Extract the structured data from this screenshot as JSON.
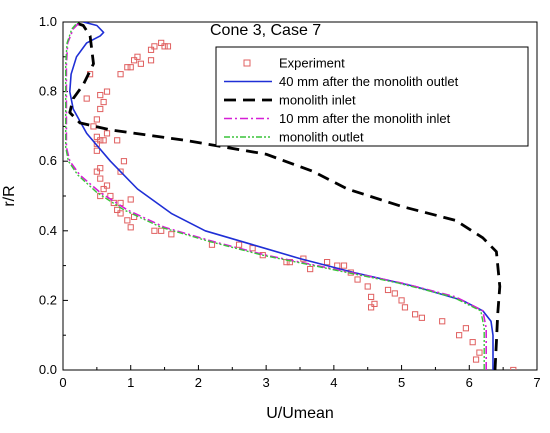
{
  "chart_data": {
    "type": "line",
    "title": "Cone 3, Case 7",
    "xlabel": "U/Umean",
    "ylabel": "r/R",
    "xlim": [
      0,
      7
    ],
    "ylim": [
      0,
      1.0
    ],
    "x_ticks": [
      "0",
      "1",
      "2",
      "3",
      "4",
      "5",
      "6",
      "7"
    ],
    "y_ticks": [
      "0.0",
      "0.2",
      "0.4",
      "0.6",
      "0.8",
      "1.0"
    ],
    "grid": false,
    "legend_position": "top-right",
    "series": [
      {
        "name": "Experiment",
        "kind": "scatter",
        "color": "#e06060",
        "marker": "open-square",
        "points": [
          [
            6.65,
            0.0
          ],
          [
            6.1,
            0.03
          ],
          [
            6.15,
            0.05
          ],
          [
            6.05,
            0.08
          ],
          [
            5.95,
            0.12
          ],
          [
            5.85,
            0.1
          ],
          [
            5.6,
            0.14
          ],
          [
            5.3,
            0.15
          ],
          [
            5.2,
            0.16
          ],
          [
            5.05,
            0.18
          ],
          [
            5.0,
            0.2
          ],
          [
            4.9,
            0.22
          ],
          [
            4.8,
            0.23
          ],
          [
            4.6,
            0.19
          ],
          [
            4.55,
            0.21
          ],
          [
            4.55,
            0.18
          ],
          [
            4.5,
            0.24
          ],
          [
            4.35,
            0.26
          ],
          [
            4.25,
            0.28
          ],
          [
            4.15,
            0.3
          ],
          [
            4.05,
            0.3
          ],
          [
            3.9,
            0.31
          ],
          [
            3.65,
            0.29
          ],
          [
            3.55,
            0.32
          ],
          [
            3.35,
            0.31
          ],
          [
            3.3,
            0.31
          ],
          [
            2.95,
            0.33
          ],
          [
            2.8,
            0.35
          ],
          [
            2.6,
            0.36
          ],
          [
            2.2,
            0.36
          ],
          [
            1.6,
            0.39
          ],
          [
            1.45,
            0.4
          ],
          [
            1.35,
            0.4
          ],
          [
            1.0,
            0.41
          ],
          [
            0.95,
            0.43
          ],
          [
            0.85,
            0.45
          ],
          [
            1.05,
            0.44
          ],
          [
            0.8,
            0.46
          ],
          [
            0.85,
            0.48
          ],
          [
            0.75,
            0.48
          ],
          [
            1.0,
            0.49
          ],
          [
            0.7,
            0.5
          ],
          [
            0.55,
            0.5
          ],
          [
            0.6,
            0.52
          ],
          [
            0.65,
            0.53
          ],
          [
            0.55,
            0.55
          ],
          [
            0.85,
            0.57
          ],
          [
            0.5,
            0.57
          ],
          [
            0.55,
            0.58
          ],
          [
            0.9,
            0.6
          ],
          [
            0.5,
            0.63
          ],
          [
            0.5,
            0.65
          ],
          [
            0.55,
            0.66
          ],
          [
            0.5,
            0.67
          ],
          [
            0.6,
            0.66
          ],
          [
            0.65,
            0.68
          ],
          [
            0.45,
            0.7
          ],
          [
            0.5,
            0.72
          ],
          [
            0.55,
            0.75
          ],
          [
            0.6,
            0.77
          ],
          [
            0.55,
            0.79
          ],
          [
            0.65,
            0.8
          ],
          [
            0.35,
            0.78
          ],
          [
            0.4,
            0.85
          ],
          [
            0.85,
            0.85
          ],
          [
            0.95,
            0.87
          ],
          [
            1.0,
            0.87
          ],
          [
            1.05,
            0.89
          ],
          [
            1.1,
            0.9
          ],
          [
            1.15,
            0.88
          ],
          [
            1.3,
            0.92
          ],
          [
            1.3,
            0.89
          ],
          [
            1.35,
            0.93
          ],
          [
            1.45,
            0.94
          ],
          [
            1.5,
            0.93
          ],
          [
            1.55,
            0.93
          ],
          [
            0.8,
            0.66
          ]
        ]
      },
      {
        "name": "40 mm after the monolith outlet",
        "kind": "line",
        "color": "#1f2fd6",
        "dash": "solid",
        "points": [
          [
            6.35,
            0.0
          ],
          [
            6.35,
            0.05
          ],
          [
            6.35,
            0.1
          ],
          [
            6.32,
            0.14
          ],
          [
            6.2,
            0.17
          ],
          [
            5.9,
            0.2
          ],
          [
            5.2,
            0.24
          ],
          [
            4.3,
            0.28
          ],
          [
            3.5,
            0.32
          ],
          [
            2.8,
            0.36
          ],
          [
            2.1,
            0.4
          ],
          [
            1.6,
            0.45
          ],
          [
            1.1,
            0.52
          ],
          [
            0.7,
            0.6
          ],
          [
            0.35,
            0.68
          ],
          [
            0.15,
            0.75
          ],
          [
            0.1,
            0.8
          ],
          [
            0.12,
            0.85
          ],
          [
            0.2,
            0.9
          ],
          [
            0.35,
            0.94
          ],
          [
            0.55,
            0.96
          ],
          [
            0.6,
            0.97
          ],
          [
            0.5,
            0.99
          ],
          [
            0.3,
            1.0
          ]
        ]
      },
      {
        "name": "monolith inlet",
        "kind": "line",
        "color": "#000000",
        "dash": "heavy-dash",
        "points": [
          [
            6.38,
            0.0
          ],
          [
            6.4,
            0.08
          ],
          [
            6.42,
            0.16
          ],
          [
            6.45,
            0.24
          ],
          [
            6.4,
            0.34
          ],
          [
            6.2,
            0.38
          ],
          [
            5.8,
            0.43
          ],
          [
            5.0,
            0.47
          ],
          [
            4.2,
            0.52
          ],
          [
            3.7,
            0.57
          ],
          [
            3.0,
            0.62
          ],
          [
            1.8,
            0.66
          ],
          [
            0.7,
            0.69
          ],
          [
            0.25,
            0.71
          ],
          [
            0.1,
            0.74
          ],
          [
            0.15,
            0.78
          ],
          [
            0.3,
            0.82
          ],
          [
            0.45,
            0.88
          ],
          [
            0.4,
            0.96
          ],
          [
            0.3,
            0.99
          ],
          [
            0.15,
            1.0
          ]
        ]
      },
      {
        "name": "10 mm after the monolith inlet",
        "kind": "line",
        "color": "#d61fd6",
        "dash": "dash-dot",
        "points": [
          [
            6.25,
            0.0
          ],
          [
            6.25,
            0.06
          ],
          [
            6.25,
            0.12
          ],
          [
            6.2,
            0.17
          ],
          [
            5.8,
            0.21
          ],
          [
            5.0,
            0.25
          ],
          [
            4.0,
            0.29
          ],
          [
            3.0,
            0.33
          ],
          [
            2.2,
            0.37
          ],
          [
            1.5,
            0.41
          ],
          [
            0.95,
            0.46
          ],
          [
            0.55,
            0.51
          ],
          [
            0.25,
            0.56
          ],
          [
            0.1,
            0.6
          ],
          [
            0.05,
            0.64
          ],
          [
            0.05,
            0.7
          ],
          [
            0.05,
            0.76
          ],
          [
            0.05,
            0.82
          ],
          [
            0.05,
            0.88
          ],
          [
            0.07,
            0.94
          ],
          [
            0.15,
            0.98
          ],
          [
            0.25,
            1.0
          ]
        ]
      },
      {
        "name": "monolith outlet",
        "kind": "line",
        "color": "#3ac43a",
        "dash": "dash-dot-dot",
        "points": [
          [
            6.22,
            0.0
          ],
          [
            6.22,
            0.06
          ],
          [
            6.22,
            0.12
          ],
          [
            6.17,
            0.17
          ],
          [
            5.75,
            0.21
          ],
          [
            4.95,
            0.25
          ],
          [
            3.95,
            0.29
          ],
          [
            2.95,
            0.33
          ],
          [
            2.15,
            0.37
          ],
          [
            1.45,
            0.41
          ],
          [
            0.9,
            0.46
          ],
          [
            0.5,
            0.51
          ],
          [
            0.22,
            0.56
          ],
          [
            0.08,
            0.6
          ],
          [
            0.04,
            0.64
          ],
          [
            0.04,
            0.7
          ],
          [
            0.04,
            0.76
          ],
          [
            0.04,
            0.82
          ],
          [
            0.04,
            0.88
          ],
          [
            0.06,
            0.94
          ],
          [
            0.13,
            0.98
          ],
          [
            0.22,
            1.0
          ]
        ]
      }
    ]
  }
}
